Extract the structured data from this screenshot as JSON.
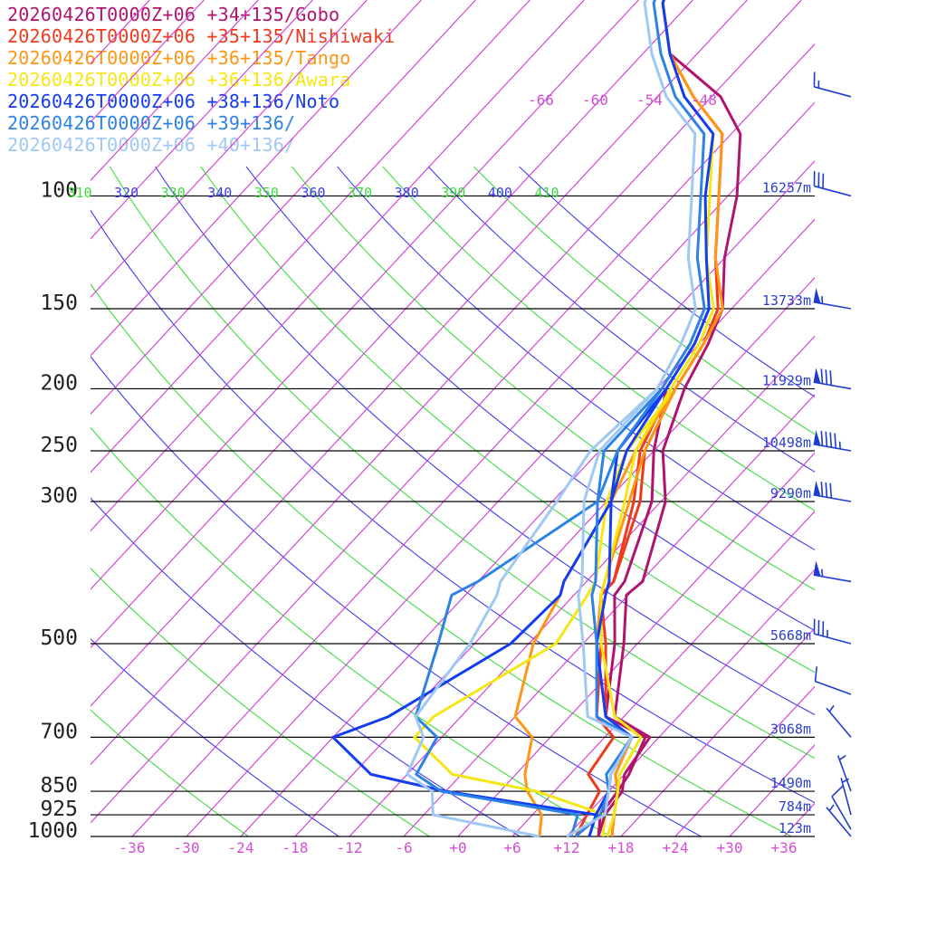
{
  "chart_data": {
    "type": "line",
    "title": "",
    "xlabel": "",
    "ylabel": "",
    "x_ticks": [
      "-36",
      "-30",
      "-24",
      "-18",
      "-12",
      "-6",
      "+0",
      "+6",
      "+12",
      "+18",
      "+24",
      "+30",
      "+36"
    ],
    "x_tick_values": [
      -36,
      -30,
      -24,
      -18,
      -12,
      -6,
      0,
      6,
      12,
      18,
      24,
      30,
      36
    ],
    "xlim": [
      -40,
      40
    ],
    "pressure_levels": [
      {
        "p": 100,
        "label": "100",
        "height": "16257m"
      },
      {
        "p": 150,
        "label": "150",
        "height": "13733m"
      },
      {
        "p": 200,
        "label": "200",
        "height": "11929m"
      },
      {
        "p": 250,
        "label": "250",
        "height": "10498m"
      },
      {
        "p": 300,
        "label": "300",
        "height": "9290m"
      },
      {
        "p": 500,
        "label": "500",
        "height": "5668m"
      },
      {
        "p": 700,
        "label": "700",
        "height": "3068m"
      },
      {
        "p": 850,
        "label": "850",
        "height": "1490m"
      },
      {
        "p": 925,
        "label": "925",
        "height": "784m"
      },
      {
        "p": 1000,
        "label": "1000",
        "height": "123m"
      }
    ],
    "upper_temp_labels": [
      "-66",
      "-60",
      "-54",
      "-48"
    ],
    "upper_temp_values": [
      -66,
      -60,
      -54,
      -48
    ],
    "theta_labels": [
      "310",
      "320",
      "330",
      "340",
      "350",
      "360",
      "370",
      "380",
      "390",
      "400",
      "410"
    ],
    "theta_values": [
      310,
      320,
      330,
      340,
      350,
      360,
      370,
      380,
      390,
      400,
      410
    ],
    "theta_colors": [
      "#3c3cf0",
      "#3cdc3c"
    ],
    "isotherm_color": "#d238d2",
    "series": [
      {
        "name": "20260426T0000Z+06 +34+135/Gobo",
        "color": "#b0146e",
        "temperature": [
          [
            1000,
            15.5
          ],
          [
            925,
            14
          ],
          [
            850,
            13.5
          ],
          [
            800,
            12
          ],
          [
            700,
            11
          ],
          [
            650,
            5
          ],
          [
            500,
            -1.5
          ],
          [
            420,
            -6.2
          ],
          [
            400,
            -5.8
          ],
          [
            300,
            -11.5
          ],
          [
            250,
            -17
          ],
          [
            200,
            -21
          ],
          [
            170,
            -23
          ],
          [
            150,
            -25
          ],
          [
            125,
            -30
          ],
          [
            100,
            -35
          ],
          [
            80,
            -41
          ],
          [
            70,
            -47
          ],
          [
            60,
            -57
          ],
          [
            50,
            -63
          ],
          [
            40,
            -67
          ]
        ],
        "dewpoint": [
          [
            1000,
            15.5
          ],
          [
            925,
            13.5
          ],
          [
            850,
            13
          ],
          [
            800,
            12.5
          ],
          [
            700,
            10.5
          ],
          [
            650,
            4
          ],
          [
            500,
            -2.5
          ],
          [
            420,
            -7.5
          ],
          [
            400,
            -7.8
          ],
          [
            300,
            -13
          ],
          [
            250,
            -18
          ],
          [
            200,
            -23
          ]
        ]
      },
      {
        "name": "20260426T0000Z+06 +35+135/Nishiwaki",
        "color": "#f03a1e",
        "temperature": [
          [
            1000,
            17
          ],
          [
            925,
            15
          ],
          [
            850,
            13
          ],
          [
            800,
            11
          ],
          [
            700,
            9
          ],
          [
            650,
            4
          ],
          [
            500,
            -3.5
          ],
          [
            420,
            -9
          ],
          [
            400,
            -9
          ],
          [
            300,
            -14.3
          ],
          [
            250,
            -19
          ],
          [
            200,
            -22
          ],
          [
            170,
            -23.5
          ],
          [
            150,
            -25.5
          ],
          [
            125,
            -31
          ],
          [
            100,
            -37
          ],
          [
            80,
            -43
          ],
          [
            70,
            -50
          ],
          [
            60,
            -57
          ],
          [
            50,
            -63
          ],
          [
            40,
            -67
          ]
        ],
        "dewpoint": [
          [
            1000,
            13
          ],
          [
            925,
            12
          ],
          [
            850,
            11
          ],
          [
            800,
            8
          ],
          [
            700,
            7
          ],
          [
            650,
            3
          ],
          [
            500,
            -4
          ],
          [
            420,
            -9
          ],
          [
            400,
            -9
          ],
          [
            300,
            -15
          ],
          [
            250,
            -19.5
          ],
          [
            200,
            -22.5
          ]
        ]
      },
      {
        "name": "20260426T0000Z+06 +36+135/Tango",
        "color": "#ff9614",
        "temperature": [
          [
            1000,
            17
          ],
          [
            925,
            15
          ],
          [
            850,
            13
          ],
          [
            800,
            11
          ],
          [
            700,
            9
          ],
          [
            650,
            4
          ],
          [
            500,
            -4.5
          ],
          [
            420,
            -9
          ],
          [
            400,
            -10
          ],
          [
            300,
            -15.5
          ],
          [
            250,
            -19
          ],
          [
            200,
            -22
          ],
          [
            170,
            -23.5
          ],
          [
            150,
            -25
          ],
          [
            125,
            -31
          ],
          [
            100,
            -37
          ],
          [
            80,
            -43
          ],
          [
            70,
            -50
          ],
          [
            60,
            -57
          ],
          [
            50,
            -63
          ],
          [
            40,
            -67
          ]
        ],
        "dewpoint": [
          [
            1000,
            9
          ],
          [
            925,
            7
          ],
          [
            850,
            3
          ],
          [
            800,
            1
          ],
          [
            700,
            -2
          ],
          [
            650,
            -6
          ],
          [
            500,
            -11.5
          ],
          [
            420,
            -13.5
          ],
          [
            400,
            -14.5
          ],
          [
            300,
            -17.5
          ],
          [
            250,
            -20
          ],
          [
            200,
            -22
          ]
        ]
      },
      {
        "name": "20260426T0000Z+06 +36+136/Awara",
        "color": "#f5e614",
        "temperature": [
          [
            1000,
            16.5
          ],
          [
            925,
            15
          ],
          [
            850,
            13
          ],
          [
            800,
            11.5
          ],
          [
            700,
            10
          ],
          [
            650,
            5
          ],
          [
            500,
            -4
          ],
          [
            420,
            -9
          ],
          [
            400,
            -10
          ],
          [
            300,
            -16
          ],
          [
            250,
            -20
          ],
          [
            200,
            -22.5
          ],
          [
            170,
            -24
          ],
          [
            150,
            -26
          ],
          [
            125,
            -32
          ],
          [
            100,
            -38
          ],
          [
            80,
            -44
          ],
          [
            70,
            -51
          ],
          [
            60,
            -57
          ],
          [
            50,
            -63
          ],
          [
            40,
            -67
          ]
        ],
        "dewpoint": [
          [
            1000,
            16
          ],
          [
            925,
            14
          ],
          [
            850,
            4
          ],
          [
            800,
            -7
          ],
          [
            700,
            -15
          ],
          [
            650,
            -15
          ],
          [
            500,
            -9
          ],
          [
            420,
            -10.5
          ],
          [
            400,
            -11
          ],
          [
            300,
            -18
          ],
          [
            250,
            -21
          ],
          [
            200,
            -22
          ]
        ]
      },
      {
        "name": "20260426T0000Z+06 +38+136/Noto",
        "color": "#143cf0",
        "temperature": [
          [
            1000,
            14.5
          ],
          [
            925,
            13
          ],
          [
            850,
            12
          ],
          [
            800,
            10.5
          ],
          [
            700,
            9
          ],
          [
            650,
            4
          ],
          [
            500,
            -4.5
          ],
          [
            420,
            -8.5
          ],
          [
            400,
            -9.5
          ],
          [
            300,
            -17.5
          ],
          [
            250,
            -21
          ],
          [
            200,
            -23
          ],
          [
            170,
            -24.5
          ],
          [
            150,
            -26.5
          ],
          [
            125,
            -32
          ],
          [
            100,
            -38.5
          ],
          [
            80,
            -44
          ],
          [
            70,
            -51
          ],
          [
            60,
            -57
          ],
          [
            50,
            -63
          ],
          [
            40,
            -67
          ]
        ],
        "dewpoint": [
          [
            1000,
            14.5
          ],
          [
            925,
            13
          ],
          [
            850,
            -6
          ],
          [
            800,
            -16
          ],
          [
            700,
            -24
          ],
          [
            650,
            -20
          ],
          [
            500,
            -14
          ],
          [
            420,
            -13.5
          ],
          [
            400,
            -14.5
          ],
          [
            300,
            -17.5
          ],
          [
            250,
            -22
          ],
          [
            200,
            -23
          ]
        ]
      },
      {
        "name": "20260426T0000Z+06 +39+136/",
        "color": "#2d82e6",
        "temperature": [
          [
            1000,
            13
          ],
          [
            925,
            13.5
          ],
          [
            850,
            12
          ],
          [
            800,
            10
          ],
          [
            700,
            9
          ],
          [
            650,
            3
          ],
          [
            500,
            -4.5
          ],
          [
            420,
            -10
          ],
          [
            400,
            -11
          ],
          [
            300,
            -19
          ],
          [
            250,
            -22
          ],
          [
            200,
            -23.5
          ],
          [
            170,
            -25
          ],
          [
            150,
            -27
          ],
          [
            125,
            -33
          ],
          [
            100,
            -39
          ],
          [
            80,
            -45
          ],
          [
            70,
            -52
          ],
          [
            60,
            -58
          ],
          [
            50,
            -64
          ],
          [
            40,
            -68
          ]
        ],
        "dewpoint": [
          [
            1000,
            12.5
          ],
          [
            925,
            11
          ],
          [
            850,
            -6.5
          ],
          [
            800,
            -11
          ],
          [
            700,
            -12.5
          ],
          [
            650,
            -17
          ],
          [
            500,
            -22
          ],
          [
            420,
            -25.5
          ],
          [
            400,
            -24
          ],
          [
            300,
            -19
          ],
          [
            250,
            -23.5
          ],
          [
            200,
            -23.5
          ]
        ]
      },
      {
        "name": "20260426T0000Z+06 +40+136/",
        "color": "#a0c8f5",
        "temperature": [
          [
            1000,
            12
          ],
          [
            925,
            14
          ],
          [
            850,
            12
          ],
          [
            800,
            10.5
          ],
          [
            700,
            9
          ],
          [
            650,
            2
          ],
          [
            500,
            -6
          ],
          [
            420,
            -11.5
          ],
          [
            400,
            -12.5
          ],
          [
            300,
            -20.5
          ],
          [
            250,
            -24
          ],
          [
            200,
            -24
          ],
          [
            170,
            -26
          ],
          [
            150,
            -28
          ],
          [
            125,
            -34
          ],
          [
            100,
            -40
          ],
          [
            80,
            -46
          ],
          [
            70,
            -53
          ],
          [
            60,
            -59
          ],
          [
            50,
            -65
          ],
          [
            40,
            -69
          ]
        ],
        "dewpoint": [
          [
            1000,
            9
          ],
          [
            925,
            -5
          ],
          [
            850,
            -7.5
          ],
          [
            800,
            -12
          ],
          [
            700,
            -14
          ],
          [
            650,
            -17
          ],
          [
            500,
            -18.5
          ],
          [
            420,
            -20.5
          ],
          [
            400,
            -21.5
          ],
          [
            300,
            -23.5
          ],
          [
            250,
            -25
          ],
          [
            200,
            -24
          ]
        ]
      }
    ],
    "wind_barbs": [
      {
        "p": 40,
        "speed_kt": 25,
        "from_deg": 280
      },
      {
        "p": 70,
        "speed_kt": 15,
        "from_deg": 285
      },
      {
        "p": 100,
        "speed_kt": 30,
        "from_deg": 285
      },
      {
        "p": 150,
        "speed_kt": 55,
        "from_deg": 280
      },
      {
        "p": 200,
        "speed_kt": 80,
        "from_deg": 280
      },
      {
        "p": 250,
        "speed_kt": 95,
        "from_deg": 280
      },
      {
        "p": 300,
        "speed_kt": 80,
        "from_deg": 280
      },
      {
        "p": 400,
        "speed_kt": 55,
        "from_deg": 280
      },
      {
        "p": 500,
        "speed_kt": 35,
        "from_deg": 285
      },
      {
        "p": 600,
        "speed_kt": 10,
        "from_deg": 290
      },
      {
        "p": 700,
        "speed_kt": 5,
        "from_deg": 320
      },
      {
        "p": 850,
        "speed_kt": 5,
        "from_deg": 340
      },
      {
        "p": 925,
        "speed_kt": 5,
        "from_deg": 345
      },
      {
        "p": 975,
        "speed_kt": 10,
        "from_deg": 330
      },
      {
        "p": 1000,
        "speed_kt": 5,
        "from_deg": 320
      }
    ]
  }
}
